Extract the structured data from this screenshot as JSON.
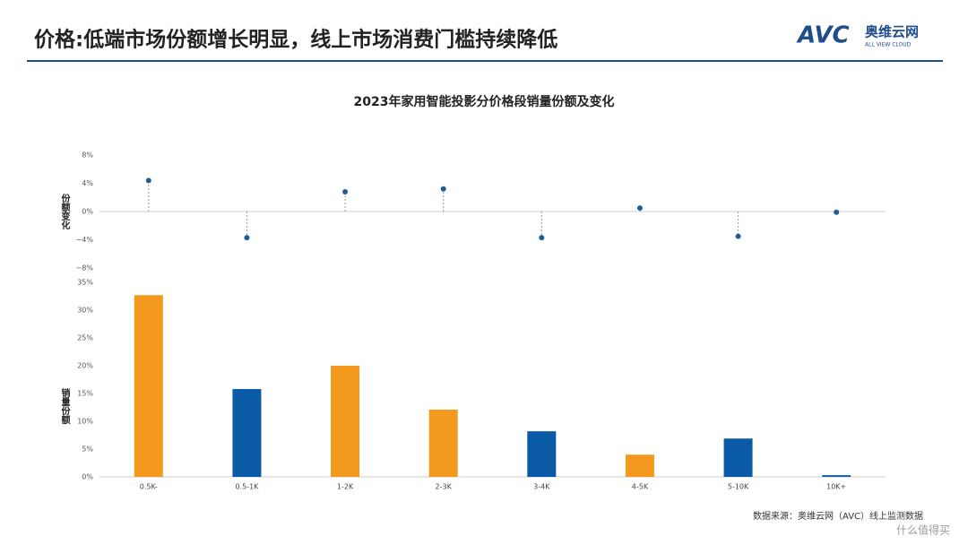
{
  "header": {
    "title": "价格:低端市场份额增长明显，线上市场消费门槛持续降低",
    "logo": "AVC",
    "logo_cn": "奥维云网",
    "logo_en": "ALL VIEW CLOUD"
  },
  "chart_data": {
    "type": "bar",
    "title": "2023年家用智能投影分价格段销量份额及变化",
    "categories": [
      "0.5K-",
      "0.5-1K",
      "1-2K",
      "2-3K",
      "3-4K",
      "4-5K",
      "5-10K",
      "10K+"
    ],
    "series": [
      {
        "name": "份额变化",
        "type": "lollipop",
        "color": "#1f5c99",
        "values": [
          4.4,
          -3.7,
          2.8,
          3.2,
          -3.7,
          0.5,
          -3.5,
          -0.1
        ],
        "ylim": [
          -8,
          8
        ],
        "yticks": [
          {
            "value": -8,
            "label": "−8%"
          },
          {
            "value": -4,
            "label": "−4%"
          },
          {
            "value": 0,
            "label": "0%"
          },
          {
            "value": 4,
            "label": "4%"
          },
          {
            "value": 8,
            "label": "8%"
          }
        ]
      },
      {
        "name": "销量份额",
        "type": "bar",
        "colors": [
          "#f39a1e",
          "#0a5aa5",
          "#f39a1e",
          "#f39a1e",
          "#0a5aa5",
          "#f39a1e",
          "#0a5aa5",
          "#0a5aa5"
        ],
        "values": [
          32.7,
          15.8,
          20.0,
          12.1,
          8.2,
          4.0,
          6.9,
          0.3
        ],
        "ylim": [
          0,
          35
        ],
        "yticks": [
          {
            "value": 0,
            "label": "0%"
          },
          {
            "value": 5,
            "label": "5%"
          },
          {
            "value": 10,
            "label": "10%"
          },
          {
            "value": 15,
            "label": "15%"
          },
          {
            "value": 20,
            "label": "20%"
          },
          {
            "value": 25,
            "label": "25%"
          },
          {
            "value": 30,
            "label": "30%"
          },
          {
            "value": 35,
            "label": "35%"
          }
        ]
      }
    ]
  },
  "footer": {
    "source": "数据来源：奥维云网（AVC）线上监测数据",
    "watermark": "什么值得买"
  }
}
